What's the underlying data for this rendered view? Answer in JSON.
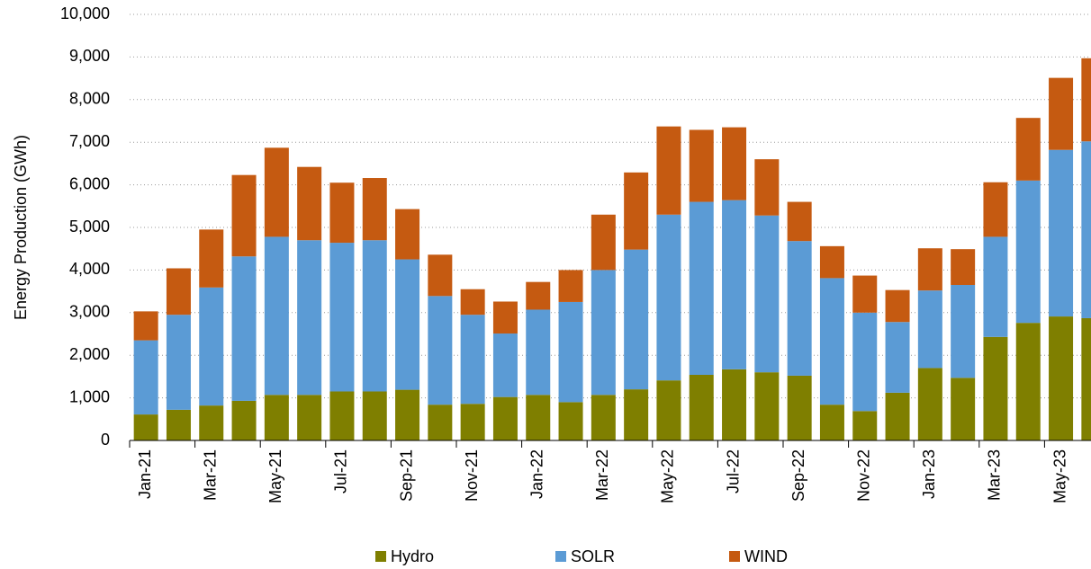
{
  "chart_data": {
    "type": "stacked-bar",
    "y_label": "Energy Production (GWh)",
    "categories": [
      "Jan-21",
      null,
      "Mar-21",
      null,
      "May-21",
      null,
      "Jul-21",
      null,
      "Sep-21",
      null,
      "Nov-21",
      null,
      "Jan-22",
      null,
      "Mar-22",
      null,
      "May-22",
      null,
      "Jul-22",
      null,
      "Sep-22",
      null,
      "Nov-22",
      null,
      "Jan-23",
      null,
      "Mar-23",
      null,
      "May-23",
      null
    ],
    "series": [
      {
        "name": "Hydro",
        "color": "#7f7f00",
        "values": [
          610,
          720,
          820,
          930,
          1070,
          1070,
          1150,
          1150,
          1190,
          840,
          860,
          1020,
          1070,
          900,
          1070,
          1200,
          1410,
          1540,
          1670,
          1600,
          1520,
          840,
          690,
          1120,
          1700,
          1470,
          2430,
          2760,
          2910,
          2870
        ]
      },
      {
        "name": "SOLR",
        "color": "#5b9bd5",
        "values": [
          1740,
          2230,
          2770,
          3390,
          3710,
          3630,
          3490,
          3550,
          3060,
          2550,
          2090,
          1490,
          2000,
          2350,
          2930,
          3280,
          3890,
          4060,
          3970,
          3680,
          3160,
          2970,
          2310,
          1660,
          1820,
          2180,
          2350,
          3340,
          3910,
          4150
        ]
      },
      {
        "name": "WIND",
        "color": "#c55a11",
        "values": [
          680,
          1090,
          1360,
          1910,
          2090,
          1720,
          1410,
          1460,
          1180,
          970,
          600,
          750,
          650,
          750,
          1300,
          1810,
          2070,
          1690,
          1710,
          1320,
          920,
          750,
          870,
          750,
          990,
          840,
          1280,
          1470,
          1690,
          1950
        ]
      }
    ],
    "ylim": [
      0,
      10000
    ],
    "yticks": [
      0,
      {
        "value": 1000,
        "label": "1,000"
      },
      {
        "value": 2000,
        "label": "2,000"
      },
      {
        "value": 3000,
        "label": "3,000"
      },
      {
        "value": 4000,
        "label": "4,000"
      },
      {
        "value": 5000,
        "label": "5,000"
      },
      {
        "value": 6000,
        "label": "6,000"
      },
      {
        "value": 7000,
        "label": "7,000"
      },
      {
        "value": 8000,
        "label": "8,000"
      },
      {
        "value": 9000,
        "label": "9,000"
      },
      {
        "value": 10000,
        "label": "10,000"
      }
    ],
    "grid": true,
    "legend": "bottom"
  }
}
